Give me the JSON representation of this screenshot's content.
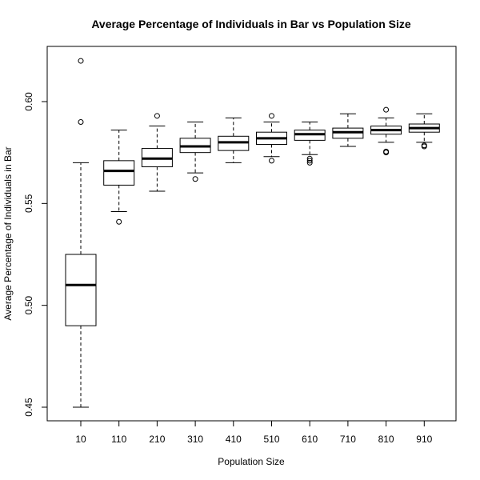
{
  "chart_data": {
    "type": "boxplot",
    "title": "Average Percentage of Individuals in Bar vs Population Size",
    "xlabel": "Population Size",
    "ylabel": "Average Percentage of Individuals in Bar",
    "categories": [
      "10",
      "110",
      "210",
      "310",
      "410",
      "510",
      "610",
      "710",
      "810",
      "910"
    ],
    "ylim": [
      0.44,
      0.625
    ],
    "yticks": [
      0.45,
      0.5,
      0.55,
      0.6
    ],
    "ytick_labels": [
      "0.45",
      "0.50",
      "0.55",
      "0.60"
    ],
    "grid": false,
    "boxes": [
      {
        "category": "10",
        "whisker_low": 0.45,
        "q1": 0.49,
        "median": 0.51,
        "q3": 0.525,
        "whisker_high": 0.57,
        "outliers": [
          0.59,
          0.62
        ]
      },
      {
        "category": "110",
        "whisker_low": 0.546,
        "q1": 0.559,
        "median": 0.566,
        "q3": 0.571,
        "whisker_high": 0.586,
        "outliers": [
          0.541
        ]
      },
      {
        "category": "210",
        "whisker_low": 0.556,
        "q1": 0.568,
        "median": 0.572,
        "q3": 0.577,
        "whisker_high": 0.588,
        "outliers": [
          0.593
        ]
      },
      {
        "category": "310",
        "whisker_low": 0.565,
        "q1": 0.575,
        "median": 0.578,
        "q3": 0.582,
        "whisker_high": 0.59,
        "outliers": [
          0.562
        ]
      },
      {
        "category": "410",
        "whisker_low": 0.57,
        "q1": 0.576,
        "median": 0.58,
        "q3": 0.583,
        "whisker_high": 0.592,
        "outliers": []
      },
      {
        "category": "510",
        "whisker_low": 0.573,
        "q1": 0.579,
        "median": 0.582,
        "q3": 0.585,
        "whisker_high": 0.59,
        "outliers": [
          0.571,
          0.593
        ]
      },
      {
        "category": "610",
        "whisker_low": 0.574,
        "q1": 0.581,
        "median": 0.584,
        "q3": 0.586,
        "whisker_high": 0.59,
        "outliers": [
          0.57,
          0.571,
          0.572
        ]
      },
      {
        "category": "710",
        "whisker_low": 0.578,
        "q1": 0.582,
        "median": 0.585,
        "q3": 0.587,
        "whisker_high": 0.594,
        "outliers": []
      },
      {
        "category": "810",
        "whisker_low": 0.58,
        "q1": 0.584,
        "median": 0.586,
        "q3": 0.588,
        "whisker_high": 0.592,
        "outliers": [
          0.575,
          0.5755,
          0.596
        ]
      },
      {
        "category": "910",
        "whisker_low": 0.58,
        "q1": 0.585,
        "median": 0.587,
        "q3": 0.589,
        "whisker_high": 0.594,
        "outliers": [
          0.578,
          0.5785
        ]
      }
    ]
  }
}
